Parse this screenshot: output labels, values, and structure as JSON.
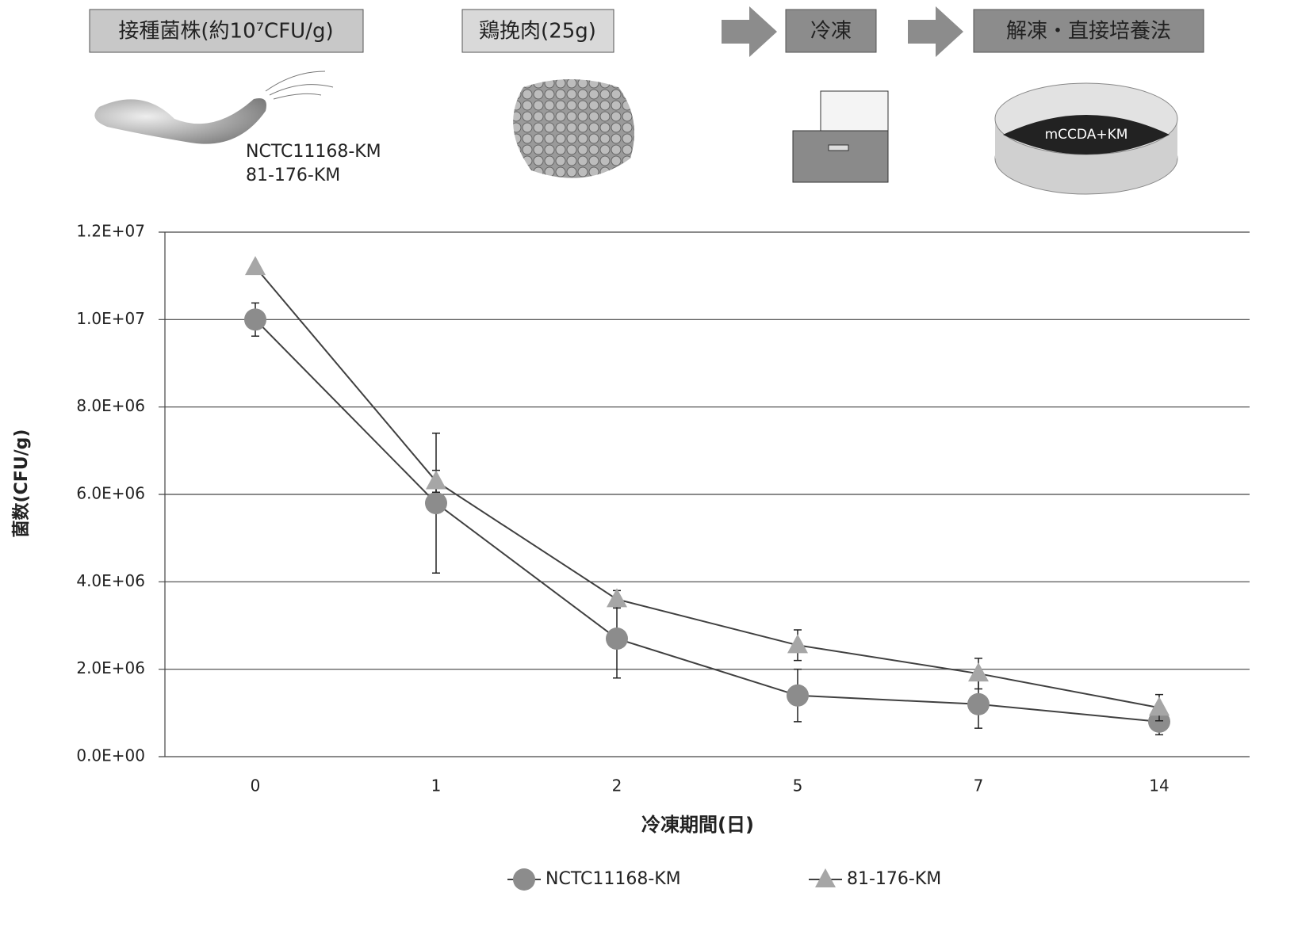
{
  "diagram": {
    "steps": [
      "接種菌株(約10⁷CFU/g)",
      "鶏挽肉(25g)",
      "冷凍",
      "解凍・直接培養法"
    ],
    "strains": [
      "NCTC11168-KM",
      "81-176-KM"
    ],
    "medium": "mCCDA+KM"
  },
  "chart_data": {
    "type": "line",
    "x_label": "冷凍期間(日)",
    "y_label": "菌数(CFU/g)",
    "categories": [
      "0",
      "1",
      "2",
      "5",
      "7",
      "14"
    ],
    "series": [
      {
        "name": "NCTC11168-KM",
        "color": "#8c8c8c",
        "marker": "circle",
        "values": [
          10000000,
          5800000,
          2700000,
          1400000,
          1200000,
          800000
        ],
        "errors": [
          380000,
          1600000,
          900000,
          600000,
          550000,
          300000
        ]
      },
      {
        "name": "81-176-KM",
        "color": "#a6a6a6",
        "marker": "triangle",
        "values": [
          11200000,
          6300000,
          3600000,
          2550000,
          1900000,
          1120000
        ],
        "errors": [
          0,
          250000,
          200000,
          350000,
          350000,
          300000
        ]
      }
    ],
    "ylim": [
      0,
      12000000
    ],
    "yticks": [
      {
        "value": 0,
        "label": "0.0E+00"
      },
      {
        "value": 2000000,
        "label": "2.0E+06"
      },
      {
        "value": 4000000,
        "label": "4.0E+06"
      },
      {
        "value": 6000000,
        "label": "6.0E+06"
      },
      {
        "value": 8000000,
        "label": "8.0E+06"
      },
      {
        "value": 10000000,
        "label": "1.0E+07"
      },
      {
        "value": 12000000,
        "label": "1.2E+07"
      }
    ],
    "grid": true,
    "legend": "bottom",
    "line_color": "#404040"
  }
}
